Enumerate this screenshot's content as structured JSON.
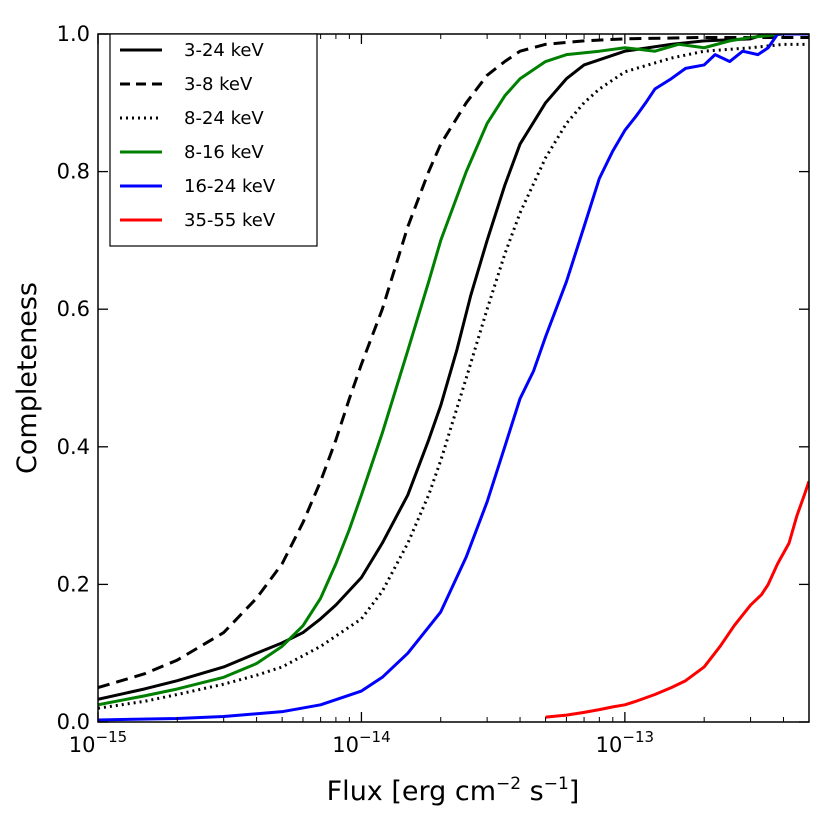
{
  "chart_data": {
    "type": "line",
    "xscale": "log",
    "xlim": [
      1e-15,
      5e-13
    ],
    "ylim": [
      0,
      1.0
    ],
    "xlabel": "Flux [erg cm",
    "xlabel_sup1": "−2",
    "xlabel_mid": " s",
    "xlabel_sup2": "−1",
    "xlabel_end": "]",
    "ylabel": "Completeness",
    "x_ticks": [
      {
        "value": 1e-15,
        "base": "10",
        "exp": "−15"
      },
      {
        "value": 1e-14,
        "base": "10",
        "exp": "−14"
      },
      {
        "value": 1e-13,
        "base": "10",
        "exp": "−13"
      }
    ],
    "y_ticks": [
      {
        "value": 0.0,
        "label": "0.0"
      },
      {
        "value": 0.2,
        "label": "0.2"
      },
      {
        "value": 0.4,
        "label": "0.4"
      },
      {
        "value": 0.6,
        "label": "0.6"
      },
      {
        "value": 0.8,
        "label": "0.8"
      },
      {
        "value": 1.0,
        "label": "1.0"
      }
    ],
    "legend_position": "top-left",
    "series": [
      {
        "name": "3-24 keV",
        "color": "#000000",
        "style": "solid",
        "points": [
          [
            1e-15,
            0.033
          ],
          [
            1.5e-15,
            0.048
          ],
          [
            2e-15,
            0.06
          ],
          [
            3e-15,
            0.08
          ],
          [
            4e-15,
            0.1
          ],
          [
            5e-15,
            0.115
          ],
          [
            6e-15,
            0.13
          ],
          [
            7e-15,
            0.15
          ],
          [
            8e-15,
            0.17
          ],
          [
            1e-14,
            0.21
          ],
          [
            1.2e-14,
            0.26
          ],
          [
            1.5e-14,
            0.33
          ],
          [
            1.8e-14,
            0.41
          ],
          [
            2e-14,
            0.46
          ],
          [
            2.3e-14,
            0.54
          ],
          [
            2.6e-14,
            0.62
          ],
          [
            3e-14,
            0.7
          ],
          [
            3.5e-14,
            0.78
          ],
          [
            4e-14,
            0.84
          ],
          [
            5e-14,
            0.9
          ],
          [
            6e-14,
            0.935
          ],
          [
            7e-14,
            0.955
          ],
          [
            1e-13,
            0.975
          ],
          [
            1.5e-13,
            0.985
          ],
          [
            2e-13,
            0.99
          ],
          [
            3e-13,
            0.993
          ],
          [
            3.4e-13,
            1.0
          ],
          [
            5e-13,
            1.0
          ]
        ]
      },
      {
        "name": "3-8 keV",
        "color": "#000000",
        "style": "dashed",
        "points": [
          [
            1e-15,
            0.05
          ],
          [
            1.5e-15,
            0.07
          ],
          [
            2e-15,
            0.09
          ],
          [
            3e-15,
            0.13
          ],
          [
            4e-15,
            0.18
          ],
          [
            5e-15,
            0.23
          ],
          [
            6e-15,
            0.29
          ],
          [
            7e-15,
            0.35
          ],
          [
            8e-15,
            0.41
          ],
          [
            9e-15,
            0.47
          ],
          [
            1e-14,
            0.52
          ],
          [
            1.2e-14,
            0.6
          ],
          [
            1.5e-14,
            0.72
          ],
          [
            1.8e-14,
            0.8
          ],
          [
            2e-14,
            0.84
          ],
          [
            2.5e-14,
            0.9
          ],
          [
            3e-14,
            0.94
          ],
          [
            3.5e-14,
            0.96
          ],
          [
            4e-14,
            0.975
          ],
          [
            5e-14,
            0.985
          ],
          [
            7e-14,
            0.99
          ],
          [
            1e-13,
            0.993
          ],
          [
            2e-13,
            0.995
          ],
          [
            5e-13,
            0.995
          ]
        ]
      },
      {
        "name": "8-24 keV",
        "color": "#000000",
        "style": "dotted",
        "points": [
          [
            1e-15,
            0.02
          ],
          [
            1.5e-15,
            0.03
          ],
          [
            2e-15,
            0.04
          ],
          [
            3e-15,
            0.055
          ],
          [
            4e-15,
            0.068
          ],
          [
            5e-15,
            0.08
          ],
          [
            7e-15,
            0.11
          ],
          [
            1e-14,
            0.15
          ],
          [
            1.2e-14,
            0.19
          ],
          [
            1.5e-14,
            0.26
          ],
          [
            1.8e-14,
            0.33
          ],
          [
            2e-14,
            0.38
          ],
          [
            2.5e-14,
            0.5
          ],
          [
            3e-14,
            0.6
          ],
          [
            3.5e-14,
            0.68
          ],
          [
            4e-14,
            0.74
          ],
          [
            5e-14,
            0.82
          ],
          [
            6e-14,
            0.87
          ],
          [
            7e-14,
            0.9
          ],
          [
            8e-14,
            0.92
          ],
          [
            1e-13,
            0.945
          ],
          [
            1.5e-13,
            0.965
          ],
          [
            2e-13,
            0.975
          ],
          [
            3e-13,
            0.98
          ],
          [
            4e-13,
            0.985
          ],
          [
            5e-13,
            0.985
          ]
        ]
      },
      {
        "name": "8-16 keV",
        "color": "#008000",
        "style": "solid",
        "points": [
          [
            1e-15,
            0.025
          ],
          [
            1.5e-15,
            0.038
          ],
          [
            2e-15,
            0.048
          ],
          [
            3e-15,
            0.065
          ],
          [
            4e-15,
            0.085
          ],
          [
            5e-15,
            0.11
          ],
          [
            6e-15,
            0.14
          ],
          [
            7e-15,
            0.18
          ],
          [
            8e-15,
            0.23
          ],
          [
            9e-15,
            0.28
          ],
          [
            1e-14,
            0.33
          ],
          [
            1.2e-14,
            0.42
          ],
          [
            1.5e-14,
            0.54
          ],
          [
            1.8e-14,
            0.64
          ],
          [
            2e-14,
            0.7
          ],
          [
            2.5e-14,
            0.8
          ],
          [
            3e-14,
            0.87
          ],
          [
            3.5e-14,
            0.91
          ],
          [
            4e-14,
            0.935
          ],
          [
            5e-14,
            0.96
          ],
          [
            6e-14,
            0.97
          ],
          [
            8e-14,
            0.975
          ],
          [
            1e-13,
            0.98
          ],
          [
            1.3e-13,
            0.975
          ],
          [
            1.6e-13,
            0.985
          ],
          [
            2e-13,
            0.98
          ],
          [
            2.5e-13,
            0.99
          ],
          [
            3e-13,
            0.995
          ],
          [
            4e-13,
            1.0
          ],
          [
            5e-13,
            1.0
          ]
        ]
      },
      {
        "name": "16-24 keV",
        "color": "#0000ff",
        "style": "solid",
        "points": [
          [
            1e-15,
            0.003
          ],
          [
            2e-15,
            0.005
          ],
          [
            3e-15,
            0.008
          ],
          [
            5e-15,
            0.015
          ],
          [
            7e-15,
            0.025
          ],
          [
            1e-14,
            0.045
          ],
          [
            1.2e-14,
            0.065
          ],
          [
            1.5e-14,
            0.1
          ],
          [
            2e-14,
            0.16
          ],
          [
            2.5e-14,
            0.24
          ],
          [
            3e-14,
            0.32
          ],
          [
            3.5e-14,
            0.4
          ],
          [
            4e-14,
            0.47
          ],
          [
            4.5e-14,
            0.51
          ],
          [
            5e-14,
            0.56
          ],
          [
            6e-14,
            0.64
          ],
          [
            7e-14,
            0.72
          ],
          [
            8e-14,
            0.79
          ],
          [
            9e-14,
            0.83
          ],
          [
            1e-13,
            0.86
          ],
          [
            1.1e-13,
            0.88
          ],
          [
            1.2e-13,
            0.9
          ],
          [
            1.3e-13,
            0.92
          ],
          [
            1.5e-13,
            0.935
          ],
          [
            1.7e-13,
            0.95
          ],
          [
            2e-13,
            0.955
          ],
          [
            2.2e-13,
            0.97
          ],
          [
            2.5e-13,
            0.96
          ],
          [
            2.8e-13,
            0.975
          ],
          [
            3.2e-13,
            0.97
          ],
          [
            3.5e-13,
            0.98
          ],
          [
            3.8e-13,
            1.0
          ],
          [
            5e-13,
            1.0
          ]
        ]
      },
      {
        "name": "35-55 keV",
        "color": "#ff0000",
        "style": "solid",
        "points": [
          [
            5e-14,
            0.007
          ],
          [
            6e-14,
            0.01
          ],
          [
            7e-14,
            0.014
          ],
          [
            8e-14,
            0.018
          ],
          [
            9e-14,
            0.022
          ],
          [
            1e-13,
            0.025
          ],
          [
            1.1e-13,
            0.03
          ],
          [
            1.3e-13,
            0.04
          ],
          [
            1.5e-13,
            0.05
          ],
          [
            1.7e-13,
            0.06
          ],
          [
            2e-13,
            0.08
          ],
          [
            2.3e-13,
            0.11
          ],
          [
            2.6e-13,
            0.14
          ],
          [
            3e-13,
            0.17
          ],
          [
            3.3e-13,
            0.185
          ],
          [
            3.5e-13,
            0.2
          ],
          [
            3.8e-13,
            0.23
          ],
          [
            4.2e-13,
            0.26
          ],
          [
            4.5e-13,
            0.3
          ],
          [
            4.8e-13,
            0.33
          ],
          [
            5e-13,
            0.35
          ]
        ]
      }
    ]
  }
}
